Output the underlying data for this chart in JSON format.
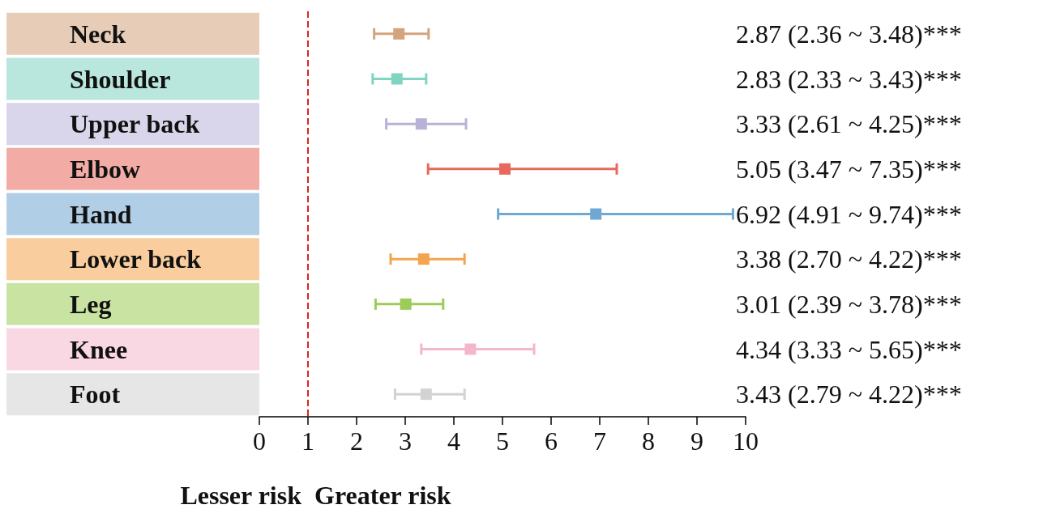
{
  "chart_data": {
    "type": "scatter",
    "orientation": "horizontal",
    "marker": "square",
    "categories": [
      "Neck",
      "Shoulder",
      "Upper back",
      "Elbow",
      "Hand",
      "Lower back",
      "Leg",
      "Knee",
      "Foot"
    ],
    "values": [
      2.87,
      2.83,
      3.33,
      5.05,
      6.92,
      3.38,
      3.01,
      4.34,
      3.43
    ],
    "errors": [
      [
        2.36,
        3.48
      ],
      [
        2.33,
        3.43
      ],
      [
        2.61,
        4.25
      ],
      [
        3.47,
        7.35
      ],
      [
        4.91,
        9.74
      ],
      [
        2.7,
        4.22
      ],
      [
        2.39,
        3.78
      ],
      [
        3.33,
        5.65
      ],
      [
        2.79,
        4.22
      ]
    ],
    "value_labels": [
      "2.87 (2.36 ~ 3.48)***",
      "2.83 (2.33 ~ 3.43)***",
      "3.33 (2.61 ~ 4.25)***",
      "5.05 (3.47 ~ 7.35)***",
      "6.92 (4.91 ~ 9.74)***",
      "3.38 (2.70 ~ 4.22)***",
      "3.01 (2.39 ~ 3.78)***",
      "4.34 (3.33 ~ 5.65)***",
      "3.43 (2.79 ~ 4.22)***"
    ],
    "colors": [
      "#d4a47c",
      "#80d4c2",
      "#b9b2d8",
      "#e8685c",
      "#6fa8d2",
      "#f4a44e",
      "#9ccc58",
      "#f4b6cc",
      "#d2d2d2"
    ],
    "xlim": [
      0,
      10
    ],
    "xticks": [
      0,
      1,
      2,
      3,
      4,
      5,
      6,
      7,
      8,
      9,
      10
    ],
    "ref_lines": [
      {
        "axis": "x",
        "value": 1,
        "color": "#e02020",
        "line_style": "dashed"
      }
    ],
    "annotations": [
      "Lesser risk",
      "Greater risk"
    ],
    "grid": false
  }
}
